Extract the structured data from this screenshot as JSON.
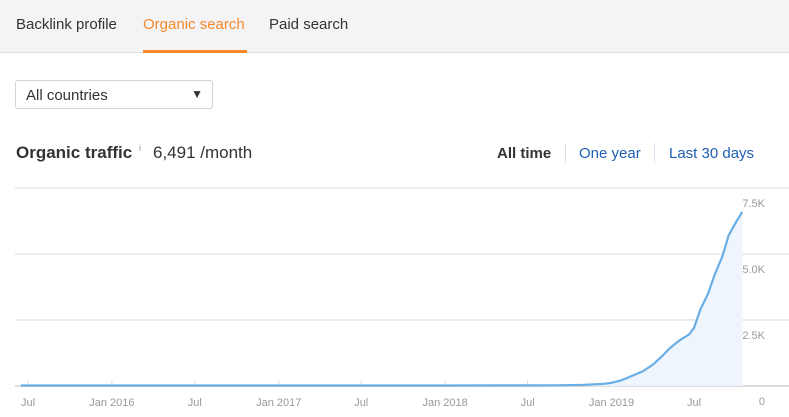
{
  "tabs": [
    {
      "label": "Backlink profile"
    },
    {
      "label": "Organic search",
      "active": true
    },
    {
      "label": "Paid search"
    }
  ],
  "country_select": {
    "value": "All countries",
    "icon": "triangle-down-icon"
  },
  "metric": {
    "title": "Organic traffic",
    "info_icon": "i",
    "value": "6,491 /month"
  },
  "ranges": [
    {
      "label": "All time",
      "active": true
    },
    {
      "label": "One year"
    },
    {
      "label": "Last 30 days"
    }
  ],
  "colors": {
    "accent": "#f7892a",
    "link": "#1e5fb3",
    "line": "#6aaee6",
    "fill": "#eef5fd"
  },
  "chart_data": {
    "type": "area",
    "x_ticks": [
      {
        "date": "2015-07",
        "label": "Jul"
      },
      {
        "date": "2016-01",
        "label": "Jan 2016"
      },
      {
        "date": "2016-07",
        "label": "Jul"
      },
      {
        "date": "2017-01",
        "label": "Jan 2017"
      },
      {
        "date": "2017-07",
        "label": "Jul"
      },
      {
        "date": "2018-01",
        "label": "Jan 2018"
      },
      {
        "date": "2018-07",
        "label": "Jul"
      },
      {
        "date": "2019-01",
        "label": "Jan 2019"
      },
      {
        "date": "2019-07",
        "label": "Jul"
      }
    ],
    "y_ticks": [
      {
        "value": 0,
        "label": "0"
      },
      {
        "value": 2500,
        "label": "2.5K"
      },
      {
        "value": 5000,
        "label": "5.0K"
      },
      {
        "value": 7500,
        "label": "7.5K"
      }
    ],
    "ylim": [
      0,
      7500
    ],
    "xlim": [
      "2015-06-15",
      "2019-12-01"
    ],
    "grid": true,
    "y_axis_position": "right",
    "series": [
      {
        "points": [
          [
            "2015-06-15",
            20
          ],
          [
            "2016-01-01",
            20
          ],
          [
            "2017-01-01",
            20
          ],
          [
            "2018-01-01",
            20
          ],
          [
            "2018-09-01",
            25
          ],
          [
            "2018-11-01",
            40
          ],
          [
            "2018-12-15",
            80
          ],
          [
            "2019-01-01",
            120
          ],
          [
            "2019-01-20",
            200
          ],
          [
            "2019-02-01",
            280
          ],
          [
            "2019-02-20",
            420
          ],
          [
            "2019-03-10",
            550
          ],
          [
            "2019-04-01",
            800
          ],
          [
            "2019-04-20",
            1100
          ],
          [
            "2019-05-10",
            1450
          ],
          [
            "2019-06-01",
            1750
          ],
          [
            "2019-06-20",
            1950
          ],
          [
            "2019-07-01",
            2200
          ],
          [
            "2019-07-15",
            2900
          ],
          [
            "2019-08-01",
            3500
          ],
          [
            "2019-08-15",
            4200
          ],
          [
            "2019-09-01",
            4900
          ],
          [
            "2019-09-15",
            5700
          ],
          [
            "2019-10-01",
            6200
          ],
          [
            "2019-10-15",
            6600
          ]
        ]
      }
    ]
  }
}
